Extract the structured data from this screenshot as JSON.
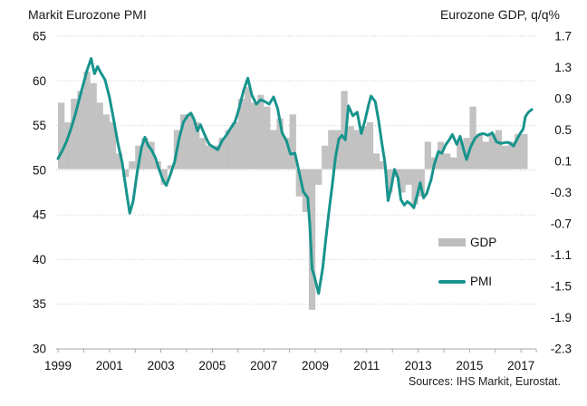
{
  "header": {
    "left_title": "Markit Eurozone PMI",
    "right_title": "Eurozone GDP, q/q%"
  },
  "footer": {
    "source": "Sources: IHS Markit, Eurostat."
  },
  "colors": {
    "pmi_line": "#17948d",
    "gdp_bar": "#c2c2c2",
    "gridline": "#c6c6c6",
    "axis": "#a8a8a8",
    "text": "#111111"
  },
  "chart_data": {
    "type": "combo",
    "title_left": "Markit Eurozone PMI",
    "title_right": "Eurozone GDP, q/q%",
    "source": "Sources: IHS Markit, Eurostat.",
    "left_axis": {
      "title": "Markit Eurozone PMI",
      "min": 30,
      "max": 65,
      "ticks": [
        65,
        60,
        55,
        50,
        45,
        40,
        35,
        30
      ]
    },
    "right_axis": {
      "title": "Eurozone GDP, q/q%",
      "min": -2.3,
      "max": 1.7,
      "ticks": [
        "1.7",
        "1.3",
        "0.9",
        "0.5",
        "0.1",
        "-0.3",
        "-0.7",
        "-1.1",
        "-1.5",
        "-1.9",
        "-2.3"
      ]
    },
    "x_axis": {
      "start": 1999,
      "end": 2017.6,
      "label_years": [
        "1999",
        "2001",
        "2003",
        "2005",
        "2007",
        "2009",
        "2011",
        "2013",
        "2015",
        "2017"
      ]
    },
    "legend": {
      "position": "inside-right",
      "entries": [
        "GDP",
        "PMI"
      ]
    },
    "series": [
      {
        "name": "GDP",
        "type": "bar",
        "axis": "right",
        "period": "quarterly",
        "start_year": 1999,
        "values": [
          0.85,
          0.6,
          0.9,
          1.0,
          1.25,
          1.1,
          0.85,
          0.7,
          0.6,
          0.2,
          -0.1,
          0.1,
          0.3,
          0.4,
          0.35,
          0.1,
          -0.2,
          0.05,
          0.5,
          0.7,
          0.7,
          0.6,
          0.4,
          0.3,
          0.3,
          0.4,
          0.5,
          0.6,
          0.9,
          1.05,
          0.85,
          0.95,
          0.8,
          0.5,
          0.65,
          0.4,
          0.7,
          -0.35,
          -0.55,
          -1.8,
          -0.2,
          0.3,
          0.5,
          0.5,
          1.0,
          0.55,
          0.5,
          0.55,
          0.6,
          0.2,
          0.1,
          -0.3,
          -0.1,
          -0.3,
          -0.2,
          -0.45,
          -0.35,
          0.35,
          0.15,
          0.35,
          0.2,
          0.15,
          0.35,
          0.4,
          0.8,
          0.45,
          0.35,
          0.45,
          0.5,
          0.3,
          0.35,
          0.45,
          0.45
        ]
      },
      {
        "name": "PMI",
        "type": "line",
        "axis": "left",
        "points": [
          [
            1999.0,
            51.3
          ],
          [
            1999.17,
            52.2
          ],
          [
            1999.33,
            53.2
          ],
          [
            1999.5,
            54.6
          ],
          [
            1999.67,
            56.2
          ],
          [
            1999.83,
            58.0
          ],
          [
            2000.0,
            59.8
          ],
          [
            2000.13,
            61.2
          ],
          [
            2000.29,
            62.5
          ],
          [
            2000.42,
            60.8
          ],
          [
            2000.54,
            61.6
          ],
          [
            2000.67,
            60.9
          ],
          [
            2000.83,
            60.1
          ],
          [
            2001.0,
            58.2
          ],
          [
            2001.17,
            55.6
          ],
          [
            2001.33,
            53.0
          ],
          [
            2001.5,
            50.8
          ],
          [
            2001.63,
            48.2
          ],
          [
            2001.79,
            45.2
          ],
          [
            2001.92,
            46.5
          ],
          [
            2002.08,
            49.8
          ],
          [
            2002.25,
            52.6
          ],
          [
            2002.38,
            53.7
          ],
          [
            2002.5,
            52.8
          ],
          [
            2002.63,
            52.3
          ],
          [
            2002.79,
            51.4
          ],
          [
            2002.92,
            50.2
          ],
          [
            2003.08,
            48.9
          ],
          [
            2003.21,
            48.3
          ],
          [
            2003.38,
            49.6
          ],
          [
            2003.54,
            51.0
          ],
          [
            2003.71,
            53.6
          ],
          [
            2003.88,
            55.4
          ],
          [
            2004.04,
            56.1
          ],
          [
            2004.17,
            56.4
          ],
          [
            2004.29,
            55.7
          ],
          [
            2004.42,
            54.4
          ],
          [
            2004.54,
            55.1
          ],
          [
            2004.71,
            53.9
          ],
          [
            2004.88,
            52.9
          ],
          [
            2005.04,
            52.6
          ],
          [
            2005.21,
            52.3
          ],
          [
            2005.38,
            53.3
          ],
          [
            2005.54,
            53.9
          ],
          [
            2005.71,
            54.7
          ],
          [
            2005.88,
            55.4
          ],
          [
            2006.04,
            56.9
          ],
          [
            2006.21,
            58.9
          ],
          [
            2006.38,
            60.3
          ],
          [
            2006.54,
            58.4
          ],
          [
            2006.71,
            57.4
          ],
          [
            2006.88,
            57.9
          ],
          [
            2007.04,
            57.7
          ],
          [
            2007.21,
            57.4
          ],
          [
            2007.38,
            58.2
          ],
          [
            2007.54,
            56.9
          ],
          [
            2007.71,
            54.2
          ],
          [
            2007.88,
            53.3
          ],
          [
            2008.04,
            51.8
          ],
          [
            2008.21,
            51.9
          ],
          [
            2008.38,
            49.7
          ],
          [
            2008.54,
            47.6
          ],
          [
            2008.71,
            46.9
          ],
          [
            2008.79,
            43.9
          ],
          [
            2008.88,
            38.9
          ],
          [
            2008.96,
            38.2
          ],
          [
            2009.13,
            36.2
          ],
          [
            2009.29,
            39.0
          ],
          [
            2009.42,
            42.5
          ],
          [
            2009.54,
            45.5
          ],
          [
            2009.67,
            48.5
          ],
          [
            2009.79,
            51.5
          ],
          [
            2009.92,
            53.5
          ],
          [
            2010.04,
            53.9
          ],
          [
            2010.17,
            53.4
          ],
          [
            2010.29,
            57.2
          ],
          [
            2010.46,
            56.1
          ],
          [
            2010.63,
            56.5
          ],
          [
            2010.79,
            54.1
          ],
          [
            2010.92,
            55.4
          ],
          [
            2011.08,
            57.4
          ],
          [
            2011.17,
            58.3
          ],
          [
            2011.33,
            57.7
          ],
          [
            2011.46,
            55.6
          ],
          [
            2011.58,
            53.2
          ],
          [
            2011.71,
            50.8
          ],
          [
            2011.83,
            46.6
          ],
          [
            2011.96,
            48.2
          ],
          [
            2012.08,
            50.1
          ],
          [
            2012.21,
            49.2
          ],
          [
            2012.33,
            46.7
          ],
          [
            2012.46,
            46.1
          ],
          [
            2012.58,
            46.5
          ],
          [
            2012.71,
            46.2
          ],
          [
            2012.83,
            45.8
          ],
          [
            2012.96,
            47.2
          ],
          [
            2013.08,
            48.6
          ],
          [
            2013.21,
            46.9
          ],
          [
            2013.33,
            47.4
          ],
          [
            2013.5,
            48.9
          ],
          [
            2013.63,
            50.7
          ],
          [
            2013.79,
            52.1
          ],
          [
            2013.92,
            51.9
          ],
          [
            2014.08,
            52.9
          ],
          [
            2014.21,
            53.4
          ],
          [
            2014.33,
            54.0
          ],
          [
            2014.5,
            52.9
          ],
          [
            2014.63,
            53.8
          ],
          [
            2014.79,
            52.1
          ],
          [
            2014.88,
            51.2
          ],
          [
            2015.04,
            52.6
          ],
          [
            2015.21,
            53.6
          ],
          [
            2015.38,
            54.0
          ],
          [
            2015.54,
            54.1
          ],
          [
            2015.71,
            53.9
          ],
          [
            2015.88,
            54.2
          ],
          [
            2016.04,
            53.2
          ],
          [
            2016.21,
            53.0
          ],
          [
            2016.38,
            53.1
          ],
          [
            2016.54,
            53.1
          ],
          [
            2016.71,
            52.7
          ],
          [
            2016.83,
            53.4
          ],
          [
            2016.96,
            54.1
          ],
          [
            2017.08,
            54.6
          ],
          [
            2017.17,
            56.0
          ],
          [
            2017.29,
            56.5
          ],
          [
            2017.42,
            56.8
          ]
        ]
      }
    ]
  }
}
